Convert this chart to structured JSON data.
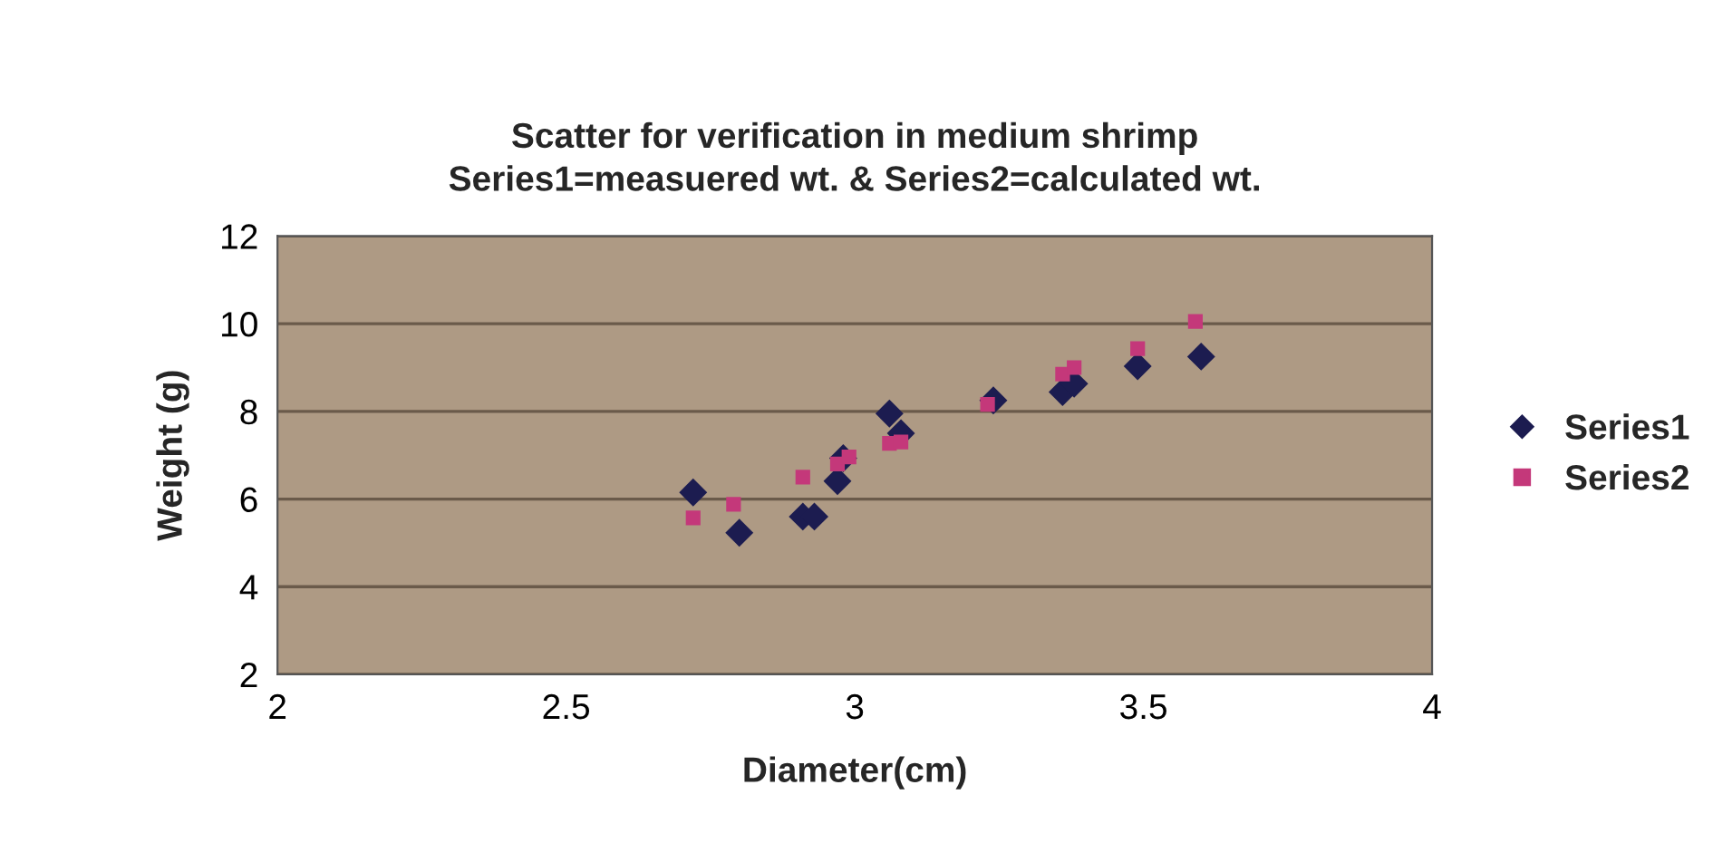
{
  "chart_data": {
    "type": "scatter",
    "title": "Scatter for verification in medium shrimp\nSeries1=measuered wt. & Series2=calculated wt.",
    "xlabel": "Diameter(cm)",
    "ylabel": "Weight (g)",
    "xlim": [
      2,
      4
    ],
    "xticks": [
      2,
      2.5,
      3,
      3.5,
      4
    ],
    "ylim": [
      2,
      12
    ],
    "yticks": [
      2,
      4,
      6,
      8,
      10,
      12
    ],
    "grid": "y",
    "legend": "right",
    "series": [
      {
        "name": "Series1",
        "color": "#1c1c50",
        "marker": "diamond",
        "x": [
          2.72,
          2.8,
          2.91,
          2.93,
          2.97,
          2.98,
          3.06,
          3.08,
          3.24,
          3.36,
          3.38,
          3.49,
          3.6
        ],
        "values": [
          6.15,
          5.23,
          5.6,
          5.6,
          6.41,
          6.93,
          7.95,
          7.5,
          8.25,
          8.44,
          8.63,
          9.03,
          9.25
        ]
      },
      {
        "name": "Series2",
        "color": "#c4387a",
        "marker": "square",
        "x": [
          2.72,
          2.79,
          2.91,
          2.97,
          2.99,
          3.06,
          3.08,
          3.23,
          3.36,
          3.38,
          3.49,
          3.59
        ],
        "values": [
          5.57,
          5.88,
          6.5,
          6.8,
          6.96,
          7.27,
          7.3,
          8.16,
          8.85,
          9.0,
          9.43,
          10.05
        ]
      }
    ]
  }
}
